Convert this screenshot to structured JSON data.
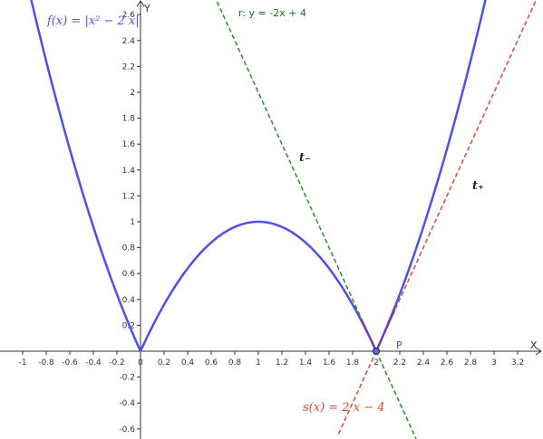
{
  "chart_data": {
    "type": "line",
    "xlabel": "X",
    "ylabel": "Y",
    "xlim": [
      -1.2,
      3.4
    ],
    "ylim": [
      -0.66,
      2.7
    ],
    "x_ticks": [
      -1,
      -0.8,
      -0.6,
      -0.4,
      -0.2,
      0,
      0.2,
      0.4,
      0.6,
      0.8,
      1,
      1.2,
      1.4,
      1.6,
      1.8,
      2,
      2.2,
      2.4,
      2.6,
      2.8,
      3,
      3.2
    ],
    "x_tick_labels": [
      "-1",
      "-0.8",
      "-0.6",
      "-0.4",
      "-0.2",
      "0",
      "0.2",
      "0.4",
      "0.6",
      "0.8",
      "1",
      "1.2",
      "1.4",
      "1.6",
      "1.8",
      "2",
      "2.2",
      "2.4",
      "2.6",
      "2.8",
      "3",
      "3.2"
    ],
    "y_ticks": [
      -0.6,
      -0.4,
      -0.2,
      0.2,
      0.4,
      0.6,
      0.8,
      1,
      1.2,
      1.4,
      1.6,
      1.8,
      2,
      2.2,
      2.4,
      2.6
    ],
    "y_tick_labels": [
      "-0.6",
      "-0.4",
      "-0.2",
      "0.2",
      "0.4",
      "0.6",
      "0.8",
      "1",
      "1.2",
      "1.4",
      "1.6",
      "1.8",
      "2",
      "2.2",
      "2.4",
      "2.6"
    ],
    "series": [
      {
        "name": "f(x) = |x² − 2 x|",
        "kind": "curve",
        "formula": "abs(x^2 - 2x)",
        "color": "#4f4ff0",
        "style": "solid"
      },
      {
        "name": "r: y = -2x + 4",
        "kind": "line",
        "slope": -2,
        "intercept": 4,
        "color": "#2e8b2e",
        "style": "dashed"
      },
      {
        "name": "s(x) = 2 x − 4",
        "kind": "line",
        "slope": 2,
        "intercept": -4,
        "color": "#e8413c",
        "style": "dashed"
      }
    ],
    "points": [
      {
        "label": "P",
        "x": 2,
        "y": 0
      }
    ],
    "labels": {
      "f_label": "f(x) = |x² − 2 x|",
      "r_label": "r: y = -2x + 4",
      "s_label": "s(x) = 2 x − 4",
      "t_minus": "t₋",
      "t_plus": "t₊",
      "point_label": "P"
    },
    "colors": {
      "curve": "#4f4ff0",
      "tangent_left": "#2e8b2e",
      "tangent_right": "#e8413c",
      "segment": "#8b2a8f",
      "axis": "#333333"
    },
    "grid": false
  }
}
